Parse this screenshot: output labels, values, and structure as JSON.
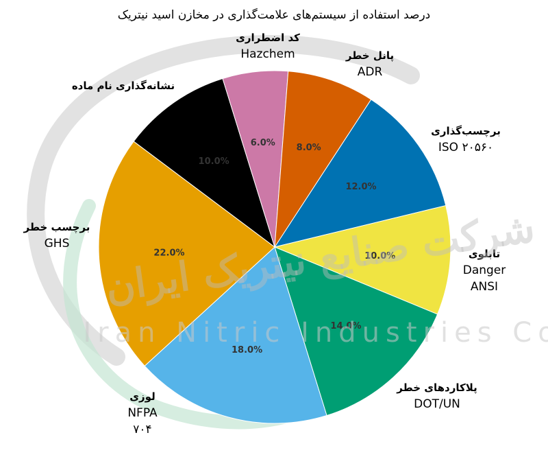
{
  "chart_data": {
    "type": "pie",
    "title": "درصد استفاده از سیستم‌های علامت‌گذاری در مخازن اسید نیتریک",
    "slices": [
      {
        "key": "iso",
        "label_lines": [
          "برچسب‌گذاری",
          "ISO ۲۰۵۶۰"
        ],
        "value": 12.0,
        "value_label": "12.0%",
        "color": "#0072b2"
      },
      {
        "key": "ansi",
        "label_lines": [
          "تابلوی",
          "Danger",
          "ANSI"
        ],
        "value": 10.0,
        "value_label": "10.0%",
        "color": "#f0e442"
      },
      {
        "key": "dot",
        "label_lines": [
          "پلاکاردهای خطر",
          "DOT/UN"
        ],
        "value": 14.0,
        "value_label": "14.0%",
        "color": "#009e73"
      },
      {
        "key": "nfpa",
        "label_lines": [
          "لوزی",
          "NFPA",
          "۷۰۴"
        ],
        "value": 18.0,
        "value_label": "18.0%",
        "color": "#56b4e9"
      },
      {
        "key": "ghs",
        "label_lines": [
          "برچسب خطر",
          "GHS"
        ],
        "value": 22.0,
        "value_label": "22.0%",
        "color": "#e69f00"
      },
      {
        "key": "name",
        "label_lines": [
          "نشانه‌گذاری نام ماده"
        ],
        "value": 10.0,
        "value_label": "10.0%",
        "color": "#000000"
      },
      {
        "key": "hazchem",
        "label_lines": [
          "کد اضطراری",
          "Hazchem"
        ],
        "value": 6.0,
        "value_label": "6.0%",
        "color": "#cc79a7"
      },
      {
        "key": "adr",
        "label_lines": [
          "پانل خطر",
          "ADR"
        ],
        "value": 8.0,
        "value_label": "8.0%",
        "color": "#d55e00"
      }
    ],
    "start_angle_deg": 33.2,
    "direction": "clockwise",
    "legend": "none"
  },
  "watermark": {
    "text_en": "Iran Nitric Industries Co",
    "text_fa": "شرکت صنایع نیتریک ایران",
    "colors": {
      "arc_gray": "#d0d0d0",
      "arc_green": "#bfe3cf"
    }
  }
}
